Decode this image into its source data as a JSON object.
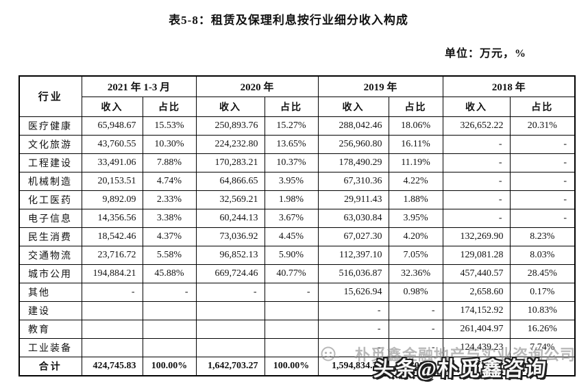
{
  "page": {
    "title": "表5-8：租赁及保理利息按行业细分收入构成",
    "unit_label": "单位：万元，%"
  },
  "table": {
    "industry_header": "行业",
    "year_groups": [
      "2021 年 1-3 月",
      "2020 年",
      "2019 年",
      "2018 年"
    ],
    "sub_headers": {
      "income": "收入",
      "share": "占比"
    },
    "rows": [
      {
        "industry": "医疗健康",
        "cells": [
          "65,948.67",
          "15.53%",
          "250,893.76",
          "15.27%",
          "288,042.46",
          "18.06%",
          "326,652.22",
          "20.31%"
        ]
      },
      {
        "industry": "文化旅游",
        "cells": [
          "43,760.55",
          "10.30%",
          "224,232.80",
          "13.65%",
          "256,960.80",
          "16.11%",
          "-",
          "-"
        ]
      },
      {
        "industry": "工程建设",
        "cells": [
          "33,491.06",
          "7.88%",
          "170,283.21",
          "10.37%",
          "178,490.29",
          "11.19%",
          "-",
          "-"
        ]
      },
      {
        "industry": "机械制造",
        "cells": [
          "20,153.51",
          "4.74%",
          "64,866.65",
          "3.95%",
          "67,310.36",
          "4.22%",
          "-",
          "-"
        ]
      },
      {
        "industry": "化工医药",
        "cells": [
          "9,892.09",
          "2.33%",
          "32,569.21",
          "1.98%",
          "29,911.43",
          "1.88%",
          "-",
          "-"
        ]
      },
      {
        "industry": "电子信息",
        "cells": [
          "14,356.56",
          "3.38%",
          "60,244.13",
          "3.67%",
          "63,030.84",
          "3.95%",
          "-",
          "-"
        ]
      },
      {
        "industry": "民生消费",
        "cells": [
          "18,542.46",
          "4.37%",
          "73,036.92",
          "4.45%",
          "67,027.30",
          "4.20%",
          "132,269.90",
          "8.23%"
        ]
      },
      {
        "industry": "交通物流",
        "cells": [
          "23,716.72",
          "5.58%",
          "96,852.13",
          "5.90%",
          "112,397.10",
          "7.05%",
          "129,081.28",
          "8.03%"
        ]
      },
      {
        "industry": "城市公用",
        "cells": [
          "194,884.21",
          "45.88%",
          "669,724.46",
          "40.77%",
          "516,036.87",
          "32.36%",
          "457,440.57",
          "28.45%"
        ]
      },
      {
        "industry": "其他",
        "cells": [
          "-",
          "-",
          "-",
          "-",
          "15,626.94",
          "0.98%",
          "2,658.60",
          "0.17%"
        ]
      },
      {
        "industry": "建设",
        "cells": [
          "",
          "",
          "",
          "",
          "-",
          "-",
          "174,152.92",
          "10.83%"
        ]
      },
      {
        "industry": "教育",
        "cells": [
          "",
          "",
          "",
          "",
          "-",
          "-",
          "261,404.97",
          "16.26%"
        ]
      },
      {
        "industry": "工业装备",
        "cells": [
          "",
          "",
          "",
          "",
          "-",
          "-",
          "124,439.23",
          "7.74%"
        ]
      },
      {
        "industry": "合计",
        "is_total": true,
        "cells": [
          "424,745.83",
          "100.00%",
          "1,642,703.27",
          "100.00%",
          "1,594,834.38",
          "100.00%",
          "",
          ""
        ]
      }
    ]
  },
  "watermark": {
    "faint_text": "—朴觅鑫金融地产与实业咨询公司",
    "bold_text": "头条@朴觅鑫咨询"
  },
  "colors": {
    "text": "#111111",
    "border": "#000000",
    "watermark_gray": "#8a8a8a",
    "watermark_outline": "#1f1f1f"
  }
}
